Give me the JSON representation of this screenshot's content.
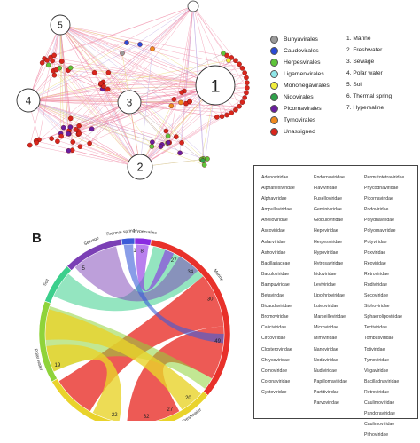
{
  "panel_b_label": "B",
  "network": {
    "hub_labels": [
      "1",
      "2",
      "3",
      "4",
      "5"
    ]
  },
  "legend": {
    "orders": [
      {
        "label": "Bunyavirales",
        "color": "#9a9a9a"
      },
      {
        "label": "Caudovirales",
        "color": "#2b4bd6"
      },
      {
        "label": "Herpesvirales",
        "color": "#5ec43a"
      },
      {
        "label": "Ligamenvirales",
        "color": "#8fe6e8"
      },
      {
        "label": "Mononegavirales",
        "color": "#f2ee3c"
      },
      {
        "label": "Nidovirales",
        "color": "#2fa24a"
      },
      {
        "label": "Picornavirales",
        "color": "#6a1e9e"
      },
      {
        "label": "Tymovirales",
        "color": "#f08a1e"
      },
      {
        "label": "Unassigned",
        "color": "#d9261c"
      }
    ],
    "environments": [
      "1. Marine",
      "2. Freshwater",
      "3. Sewage",
      "4. Polar water",
      "5. Soil",
      "6. Thermal spring",
      "7. Hypersaline"
    ]
  },
  "families": [
    [
      "Adenoviridae",
      "Alphaflexiviridae",
      "Alphaviridae",
      "Ampullaviridae",
      "Anelloviridae",
      "Ascoviridae",
      "Asfarviridae",
      "Astroviridae",
      "Bacillariaceae",
      "Baculoviridae",
      "Bampuviridae",
      "Betaviridae",
      "Bicaudaviridae",
      "Bromoviridae",
      "Caliciviridae",
      "Circoviridae",
      "Closteroviridae",
      "Chrysoviridae",
      "Comoviridae",
      "Coronaviridae",
      "Cystoviridae"
    ],
    [
      "Endornaviridae",
      "Flaviviridae",
      "Fuselloviridae",
      "Geminiviridae",
      "Globuloviridae",
      "Hepeviridae",
      "Herpesviridae",
      "Hypoviridae",
      "Hytrosaviridae",
      "Iridoviridae",
      "Leviviridae",
      "Lipothrixviridae",
      "Luteoviridae",
      "Marseilleviridae",
      "Microviridae",
      "Mimiviridae",
      "Nanoviridae",
      "Nodaviridae",
      "Nudiviridae",
      "Papillomaviridae",
      "Partitiviridae",
      "Parvoviridae"
    ],
    [
      "Permutotetraviridae",
      "Phycodnaviridae",
      "Picornaviridae",
      "Podoviridae",
      "Polydnaviridae",
      "Polyomaviridae",
      "Potyviridae",
      "Poxviridae",
      "Reoviridae",
      "Retroviridae",
      "Rudiviridae",
      "Secoviridae",
      "Siphoviridae",
      "Sphaerolipoviridae",
      "Tectiviridae",
      "Tombusviridae",
      "Totiviridae",
      "Tymoviridae",
      "Virgaviridae",
      "Bacilladnaviridae",
      "Retroviridae",
      "Caulimoviridae",
      "Pandoraviridae",
      "Caulimoviridae",
      "Pithoviridae"
    ]
  ],
  "chord": {
    "segments": [
      {
        "label": "Marine",
        "color": "#e8312a"
      },
      {
        "label": "Freshwater",
        "color": "#e9d32b"
      },
      {
        "label": "Polar water",
        "color": "#8fd33a"
      },
      {
        "label": "Soil",
        "color": "#3ccf8c"
      },
      {
        "label": "Sewage",
        "color": "#7b3fb5"
      },
      {
        "label": "Thermal spring",
        "color": "#3b5bd8"
      },
      {
        "label": "Hypersaline",
        "color": "#8a2be2"
      }
    ],
    "values": [
      "27",
      "34",
      "30",
      "49",
      "19",
      "5",
      "22",
      "32",
      "20",
      "27",
      "1",
      "8"
    ]
  }
}
